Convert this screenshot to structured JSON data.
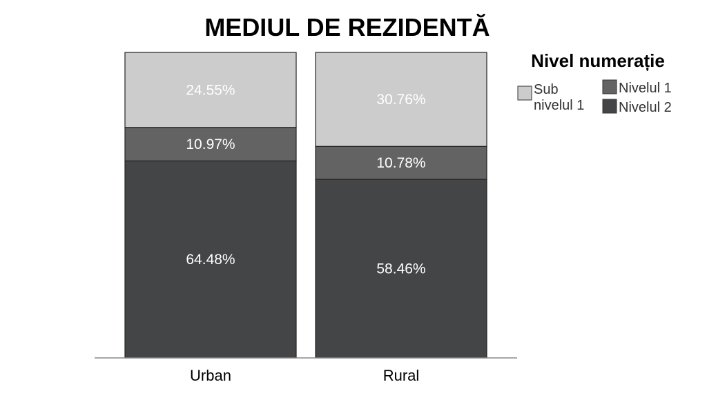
{
  "chart_data": {
    "type": "bar",
    "stacked": true,
    "percent": true,
    "title": "MEDIUL DE REZIDENTĂ",
    "xlabel": "",
    "ylabel": "",
    "ylim": [
      0,
      100
    ],
    "categories": [
      "Urban",
      "Rural"
    ],
    "legend_title": "Nivel numerație",
    "legend_position": "top-right",
    "grid": false,
    "series": [
      {
        "name": "Nivelul 2",
        "values": [
          64.48,
          58.46
        ],
        "labels": [
          "64.48%",
          "58.46%"
        ],
        "color": "#444547"
      },
      {
        "name": "Nivelul 1",
        "values": [
          10.97,
          10.78
        ],
        "labels": [
          "10.97%",
          "10.78%"
        ],
        "color": "#636363"
      },
      {
        "name": "Sub nivelul 1",
        "values": [
          24.55,
          30.76
        ],
        "labels": [
          "24.55%",
          "30.76%"
        ],
        "color": "#cccccc"
      }
    ],
    "legend": [
      {
        "series": "Sub nivelul 1",
        "lines": [
          "Sub",
          "nivelul 1"
        ]
      },
      {
        "series": "Nivelul 1",
        "lines": [
          "Nivelul 1"
        ]
      },
      {
        "series": "Nivelul 2",
        "lines": [
          "Nivelul 2"
        ]
      }
    ]
  }
}
